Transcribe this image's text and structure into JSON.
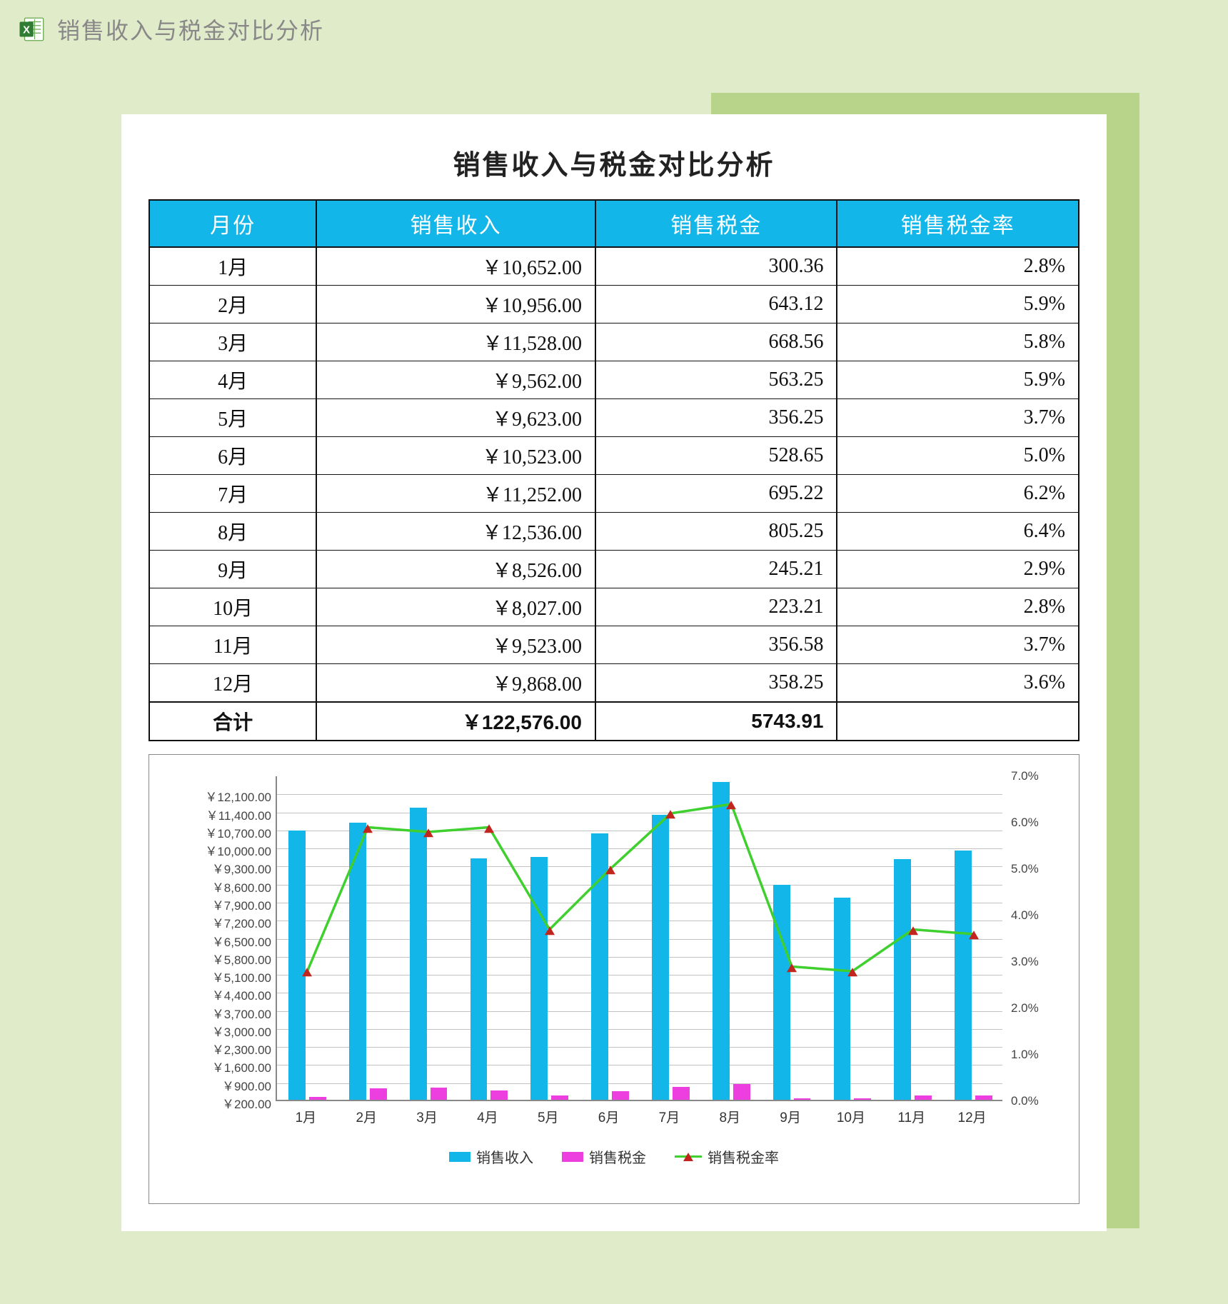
{
  "header": {
    "title": "销售收入与税金对比分析"
  },
  "sheet": {
    "title": "销售收入与税金对比分析",
    "columns": [
      "月份",
      "销售收入",
      "销售税金",
      "销售税金率"
    ],
    "col_widths": [
      "18%",
      "30%",
      "26%",
      "26%"
    ],
    "header_bg": "#13b6e8",
    "header_color": "#ffffff",
    "rows": [
      {
        "month": "1月",
        "income": "￥10,652.00",
        "tax": "300.36",
        "rate": "2.8%"
      },
      {
        "month": "2月",
        "income": "￥10,956.00",
        "tax": "643.12",
        "rate": "5.9%"
      },
      {
        "month": "3月",
        "income": "￥11,528.00",
        "tax": "668.56",
        "rate": "5.8%"
      },
      {
        "month": "4月",
        "income": "￥9,562.00",
        "tax": "563.25",
        "rate": "5.9%"
      },
      {
        "month": "5月",
        "income": "￥9,623.00",
        "tax": "356.25",
        "rate": "3.7%"
      },
      {
        "month": "6月",
        "income": "￥10,523.00",
        "tax": "528.65",
        "rate": "5.0%"
      },
      {
        "month": "7月",
        "income": "￥11,252.00",
        "tax": "695.22",
        "rate": "6.2%"
      },
      {
        "month": "8月",
        "income": "￥12,536.00",
        "tax": "805.25",
        "rate": "6.4%"
      },
      {
        "month": "9月",
        "income": "￥8,526.00",
        "tax": "245.21",
        "rate": "2.9%"
      },
      {
        "month": "10月",
        "income": "￥8,027.00",
        "tax": "223.21",
        "rate": "2.8%"
      },
      {
        "month": "11月",
        "income": "￥9,523.00",
        "tax": "356.58",
        "rate": "3.7%"
      },
      {
        "month": "12月",
        "income": "￥9,868.00",
        "tax": "358.25",
        "rate": "3.6%"
      }
    ],
    "total": {
      "label": "合计",
      "income": "￥122,576.00",
      "tax": "5743.91",
      "rate": ""
    }
  },
  "chart": {
    "type": "bar+line",
    "categories": [
      "1月",
      "2月",
      "3月",
      "4月",
      "5月",
      "6月",
      "7月",
      "8月",
      "9月",
      "10月",
      "11月",
      "12月"
    ],
    "series_income": {
      "label": "销售收入",
      "color": "#13b6e8",
      "values": [
        10652,
        10956,
        11528,
        9562,
        9623,
        10523,
        11252,
        12536,
        8526,
        8027,
        9523,
        9868
      ]
    },
    "series_tax": {
      "label": "销售税金",
      "color": "#ed3fe0",
      "values": [
        300.36,
        643.12,
        668.56,
        563.25,
        356.25,
        528.65,
        695.22,
        805.25,
        245.21,
        223.21,
        356.58,
        358.25
      ]
    },
    "series_rate": {
      "label": "销售税金率",
      "color": "#3fcf2e",
      "marker_color": "#c2251e",
      "values": [
        2.8,
        5.9,
        5.8,
        5.9,
        3.7,
        5.0,
        6.2,
        6.4,
        2.9,
        2.8,
        3.7,
        3.6
      ]
    },
    "y_left": {
      "min": 200,
      "max": 12800,
      "step": 700,
      "ticks": [
        "￥200.00",
        "￥900.00",
        "￥1,600.00",
        "￥2,300.00",
        "￥3,000.00",
        "￥3,700.00",
        "￥4,400.00",
        "￥5,100.00",
        "￥5,800.00",
        "￥6,500.00",
        "￥7,200.00",
        "￥7,900.00",
        "￥8,600.00",
        "￥9,300.00",
        "￥10,000.00",
        "￥10,700.00",
        "￥11,400.00",
        "￥12,100.00"
      ]
    },
    "y_right": {
      "min": 0,
      "max": 7,
      "step": 1,
      "ticks": [
        "0.0%",
        "1.0%",
        "2.0%",
        "3.0%",
        "4.0%",
        "5.0%",
        "6.0%",
        "7.0%"
      ]
    },
    "bar_width_ratio": 0.28,
    "bar_group_gap": 0.06,
    "grid_color": "#c3c3c3",
    "axis_color": "#888888",
    "background": "#ffffff"
  },
  "colors": {
    "page_bg": "#e0ebc9",
    "green_block": "#b7d48a"
  }
}
